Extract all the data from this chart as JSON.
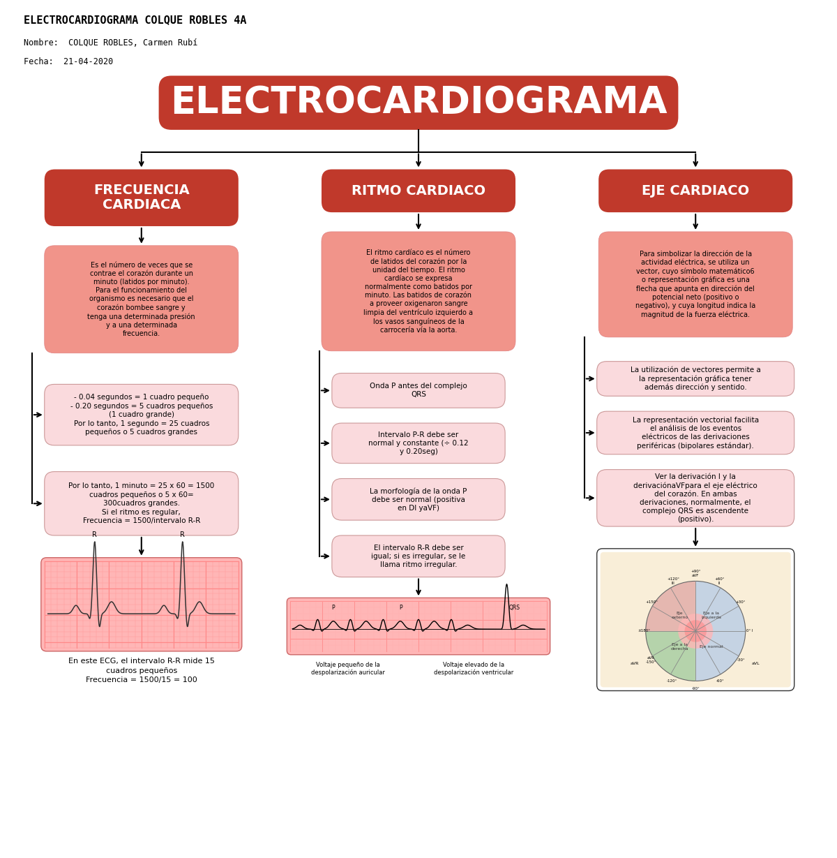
{
  "title": "ELECTROCARDIOGRAMA COLQUE ROBLES 4A",
  "nombre": "Nombre:  COLQUE ROBLES, Carmen Rubí",
  "fecha": "Fecha:  21-04-2020",
  "main_title": "ELECTROCARDIOGRAMA",
  "main_color": "#C0392B",
  "header_color": "#C0392B",
  "light_pink": "#F1948A",
  "sub_pink": "#FADADD",
  "white": "#FFFFFF",
  "black": "#000000",
  "col1_header": "FRECUENCIA\nCARDIACA",
  "col2_header": "RITMO CARDIACO",
  "col3_header": "EJE CARDIACO",
  "col1_desc": "Es el número de veces que se\ncontrae el corazón durante un\nminuto (latidos por minuto).\nPara el funcionamiento del\norganismo es necesario que el\ncorazón bombee sangre y\ntenga una determinada presión\ny a una determinada\nfrecuencia.",
  "col2_desc": "El ritmo cardíaco es el número\nde latidos del corazón por la\nunidad del tiempo. El ritmo\ncardíaco se expresa\nnormalmente como batidos por\nminuto. Las batidos de corazón\na proveer oxigenaron sangre\nlimpia del ventrículo izquierdo a\nlos vasos sanguíneos de la\ncarrocería vía la aorta.",
  "col3_desc": "Para simbolizar la dirección de la\nactividad eléctrica, se utiliza un\nvector, cuyo símbolo matemático6\no representación gráfica es una\nflecha que apunta en dirección del\npotencial neto (positivo o\nnegativo), y cuya longitud indica la\nmagnitud de la fuerza eléctrica.",
  "col1_sub1": "- 0.04 segundos = 1 cuadro pequeño\n- 0.20 segundos = 5 cuadros pequeños\n(1 cuadro grande)\nPor lo tanto, 1 segundo = 25 cuadros\npequeños o 5 cuadros grandes",
  "col1_sub2": "Por lo tanto, 1 minuto = 25 x 60 = 1500\ncuadros pequeños o 5 x 60=\n300cuadros grandes.\nSi el ritmo es regular,\nFrecuencia = 1500/intervalo R-R",
  "col1_bottom": "En este ECG, el intervalo R-R mide 15\ncuadros pequeños\nFrecuencia = 1500/15 = 100",
  "col2_sub1": "Onda P antes del complejo\nQRS",
  "col2_sub2": "Intervalo P-R debe ser\nnormal y constante (÷ 0.12\ny 0.20seg)",
  "col2_sub3": "La morfología de la onda P\ndebe ser normal (positiva\nen DI yaVF)",
  "col2_sub4": "El intervalo R-R debe ser\nigual; si es irregular, se le\nllama ritmo irregular.",
  "col3_sub1": "La utilización de vectores permite a\nla representación gráfica tener\nademás dirección y sentido.",
  "col3_sub2": "La representación vectorial facilita\nel análisis de los eventos\neléctricos de las derivaciones\nperiféricas (bipolares estándar).",
  "col3_sub3": "Ver la derivación I y la\nderivaciónaVFpara el eje eléctrico\ndel corazón. En ambas\nderivaciones, normalmente, el\ncomplejo QRS es ascendente\n(positivo)."
}
